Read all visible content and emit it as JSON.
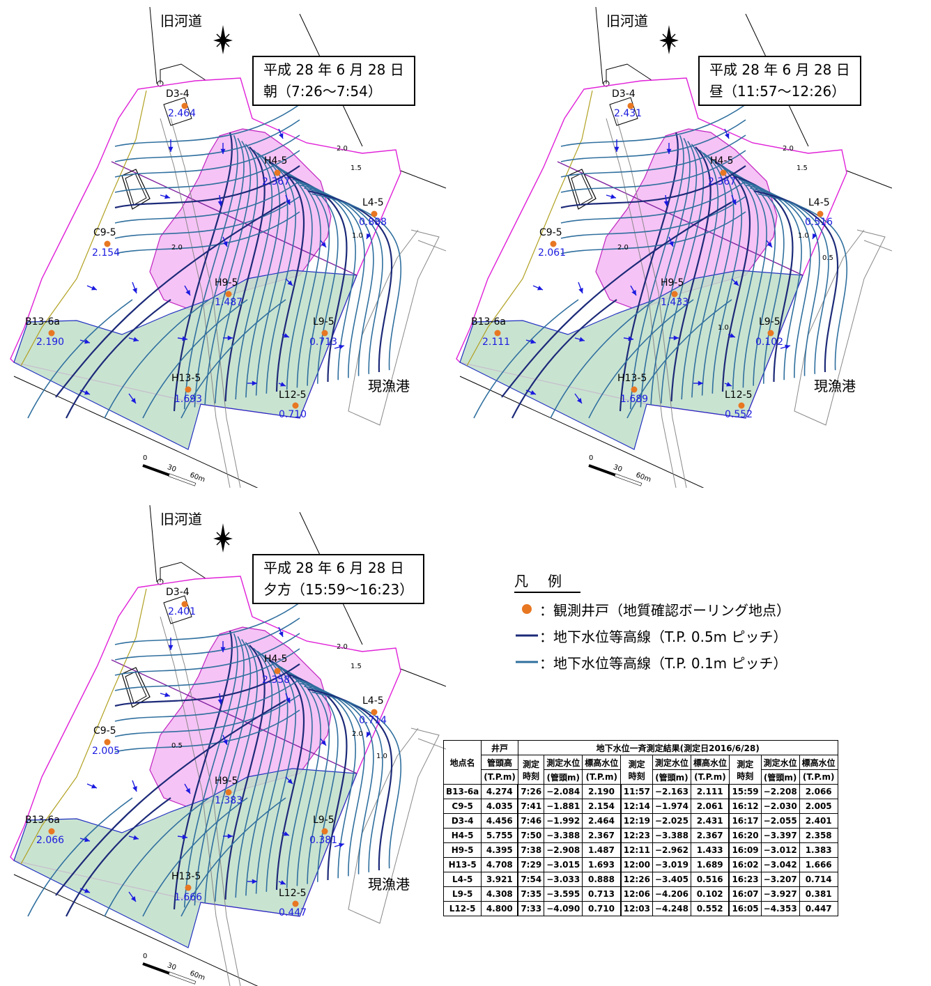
{
  "maps": [
    {
      "river": "旧河道",
      "date_line1": "平成 28 年 6 月 28 日",
      "date_line2": "朝（7:26〜7:54）",
      "port": "現漁港",
      "contours": [
        "2.0",
        "1.5",
        "1.0",
        "2.0"
      ],
      "wells": {
        "D3-4": "2.464",
        "H4-5": "2.367",
        "L4-5": "0.888",
        "C9-5": "2.154",
        "H9-5": "1.487",
        "B13-6a": "2.190",
        "L9-5": "0.713",
        "H13-5": "1.693",
        "L12-5": "0.710"
      }
    },
    {
      "river": "旧河道",
      "date_line1": "平成 28 年 6 月 28 日",
      "date_line2": "昼（11:57〜12:26）",
      "port": "現漁港",
      "contours": [
        "2.0",
        "1.5",
        "1.0",
        "2.0",
        "0.5",
        "1.0"
      ],
      "wells": {
        "D3-4": "2.431",
        "H4-5": "2.367",
        "L4-5": "0.516",
        "C9-5": "2.061",
        "H9-5": "1.433",
        "B13-6a": "2.111",
        "L9-5": "0.102",
        "H13-5": "1.689",
        "L12-5": "0.552"
      }
    },
    {
      "river": "旧河道",
      "date_line1": "平成 28 年 6 月 28 日",
      "date_line2": "夕方（15:59〜16:23）",
      "port": "現漁港",
      "contours": [
        "2.0",
        "1.5",
        "2.0",
        "0.5",
        "1.0"
      ],
      "wells": {
        "D3-4": "2.401",
        "H4-5": "2.358",
        "L4-5": "0.714",
        "C9-5": "2.005",
        "H9-5": "1.383",
        "B13-6a": "2.066",
        "L9-5": "0.381",
        "H13-5": "1.666",
        "L12-5": "0.447"
      }
    }
  ],
  "scale": {
    "zero": "0",
    "mid": "30",
    "end": "60m"
  },
  "legend": {
    "title_a": "凡",
    "title_b": "例",
    "items": [
      "：観測井戸（地質確認ボーリング地点）",
      "：地下水位等高線（T.P. 0.5m ピッチ）",
      "：地下水位等高線（T.P. 0.1m ピッチ）"
    ],
    "colors": {
      "well": "#e87722",
      "contour_major": "#1c2a78",
      "contour_minor": "#2f6f9e"
    }
  },
  "table": {
    "h_name": "地点名",
    "h_pipe_a": "井戸",
    "h_pipe_b": "管頭高",
    "h_pipe_unit": "(T.P.m)",
    "h_group": "地下水位一斉測定結果(測定日2016/6/28)",
    "h_time_a": "測定",
    "h_time_b": "時刻",
    "h_meas": "測定水位",
    "h_meas_unit": "(管頭m)",
    "h_elev": "標高水位",
    "h_elev_unit": "(T.P.m)",
    "rows": [
      [
        "B13-6a",
        "4.274",
        "7:26",
        "−2.084",
        "2.190",
        "11:57",
        "−2.163",
        "2.111",
        "15:59",
        "−2.208",
        "2.066"
      ],
      [
        "C9-5",
        "4.035",
        "7:41",
        "−1.881",
        "2.154",
        "12:14",
        "−1.974",
        "2.061",
        "16:12",
        "−2.030",
        "2.005"
      ],
      [
        "D3-4",
        "4.456",
        "7:46",
        "−1.992",
        "2.464",
        "12:19",
        "−2.025",
        "2.431",
        "16:17",
        "−2.055",
        "2.401"
      ],
      [
        "H4-5",
        "5.755",
        "7:50",
        "−3.388",
        "2.367",
        "12:23",
        "−3.388",
        "2.367",
        "16:20",
        "−3.397",
        "2.358"
      ],
      [
        "H9-5",
        "4.395",
        "7:38",
        "−2.908",
        "1.487",
        "12:11",
        "−2.962",
        "1.433",
        "16:09",
        "−3.012",
        "1.383"
      ],
      [
        "H13-5",
        "4.708",
        "7:29",
        "−3.015",
        "1.693",
        "12:00",
        "−3.019",
        "1.689",
        "16:02",
        "−3.042",
        "1.666"
      ],
      [
        "L4-5",
        "3.921",
        "7:54",
        "−3.033",
        "0.888",
        "12:26",
        "−3.405",
        "0.516",
        "16:23",
        "−3.207",
        "0.714"
      ],
      [
        "L9-5",
        "4.308",
        "7:35",
        "−3.595",
        "0.713",
        "12:06",
        "−4.206",
        "0.102",
        "16:07",
        "−3.927",
        "0.381"
      ],
      [
        "L12-5",
        "4.800",
        "7:33",
        "−4.090",
        "0.710",
        "12:03",
        "−4.248",
        "0.552",
        "16:05",
        "−4.353",
        "0.447"
      ]
    ]
  }
}
